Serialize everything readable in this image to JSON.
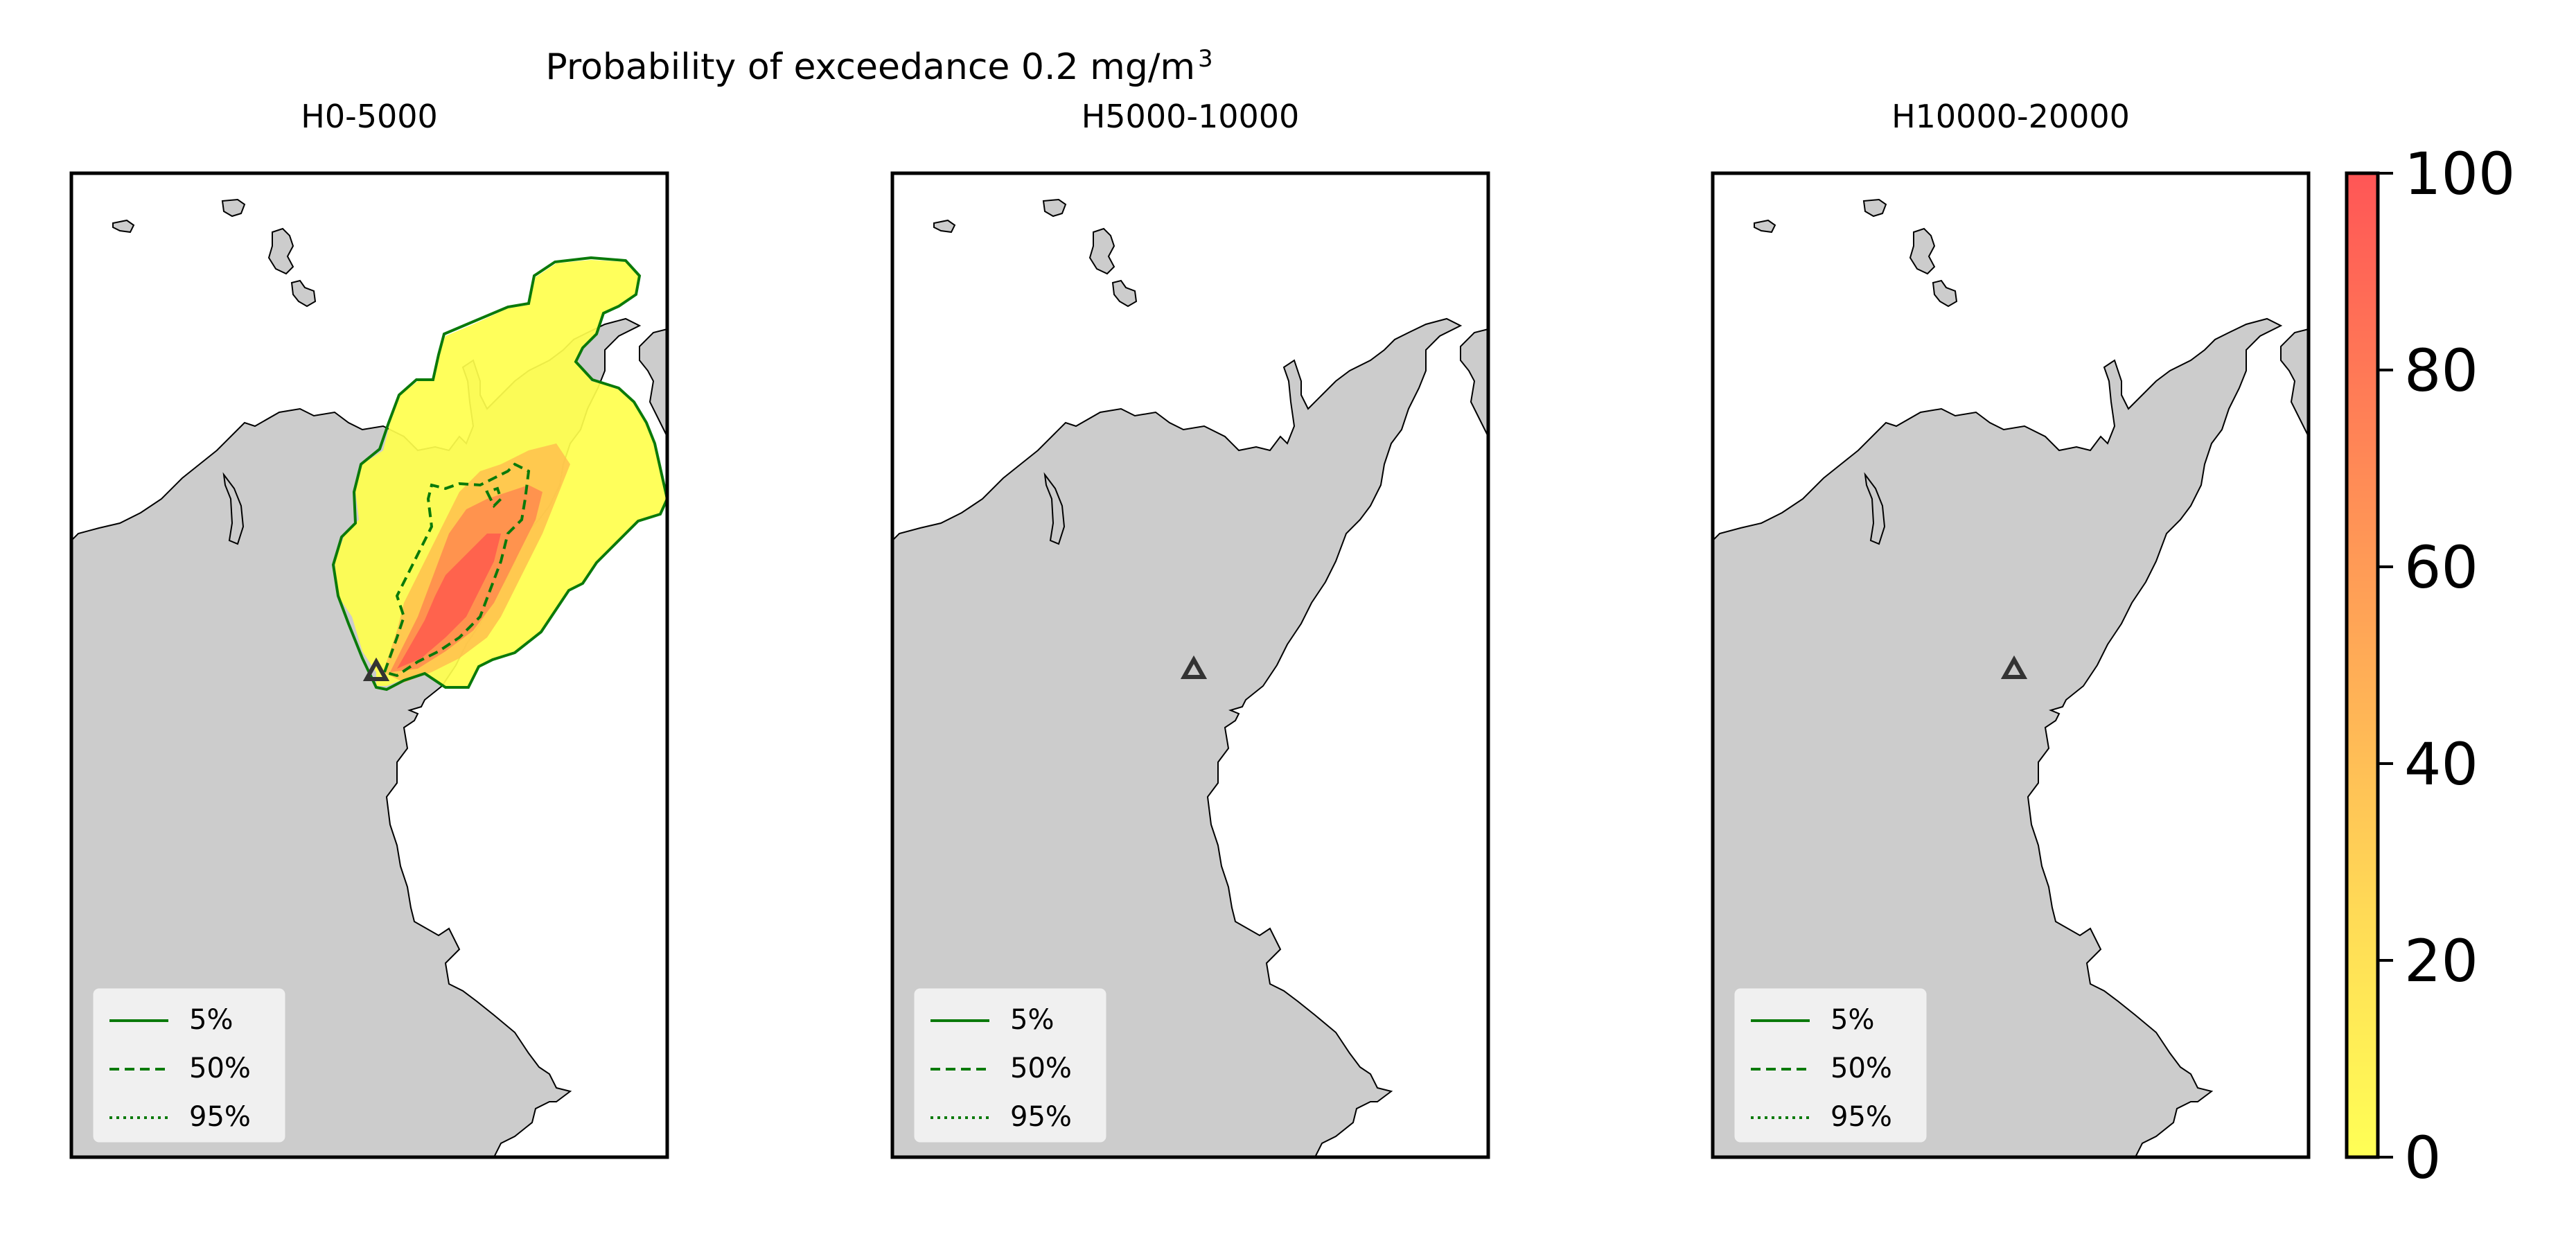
{
  "figure": {
    "suptitle_main": "Probability of exceedance 0.2 mg/m",
    "suptitle_sup": "3"
  },
  "panels": [
    {
      "title": "H0-5000",
      "has_plume": true
    },
    {
      "title": "H5000-10000",
      "has_plume": false
    },
    {
      "title": "H10000-20000",
      "has_plume": false
    }
  ],
  "legend": {
    "items": [
      {
        "label": "5%",
        "style": "solid"
      },
      {
        "label": "50%",
        "style": "dashed"
      },
      {
        "label": "95%",
        "style": "dotted"
      }
    ]
  },
  "colorbar": {
    "ticks": [
      "0",
      "20",
      "40",
      "60",
      "80",
      "100"
    ],
    "min": 0,
    "max": 100,
    "colors": [
      "#ffff4d",
      "#ff4d4d"
    ]
  },
  "colors": {
    "land": "#cccccc",
    "contour": "#0a7a0a",
    "vent": "#333333"
  },
  "icons": {
    "vent": "triangle-vent-icon"
  }
}
